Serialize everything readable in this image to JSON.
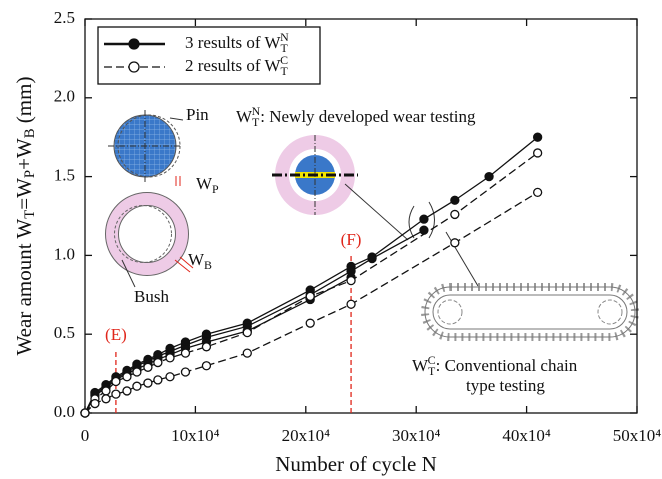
{
  "chart_data": {
    "type": "line",
    "x_label": "Number of cycle N",
    "y_label": [
      {
        "t": "Wear amount W"
      },
      {
        "t": "T",
        "sub": true
      },
      {
        "t": "=W"
      },
      {
        "t": "P",
        "sub": true
      },
      {
        "t": "+W"
      },
      {
        "t": "B",
        "sub": true
      },
      {
        "t": " (mm)"
      }
    ],
    "xlim": [
      0,
      500000
    ],
    "xticks": [
      0,
      {
        "value": 100000,
        "label": "10x10⁴"
      },
      {
        "value": 200000,
        "label": "20x10⁴"
      },
      {
        "value": 300000,
        "label": "30x10⁴"
      },
      {
        "value": 400000,
        "label": "40x10⁴"
      },
      {
        "value": 500000,
        "label": "50x10⁴"
      }
    ],
    "ylim": [
      0,
      2.5
    ],
    "yticks": [
      {
        "value": 0,
        "label": "0.0"
      },
      0.5,
      {
        "value": 1,
        "label": "1.0"
      },
      1.5,
      {
        "value": 2,
        "label": "2.0"
      },
      2.5
    ],
    "groups": [
      {
        "legend": [
          {
            "t": "3 results of  W"
          },
          {
            "t": "T",
            "sub": true
          },
          {
            "t": "N",
            "sup": true
          }
        ],
        "color": "#111",
        "marker": "filled",
        "dashed": false,
        "x": [
          0,
          9000,
          19000,
          28000,
          38000,
          47000,
          57000,
          66000,
          77000,
          91000,
          110000,
          147000,
          204000,
          241000,
          260000,
          307000,
          335000,
          366000,
          410000
        ],
        "runs": [
          [
            0,
            0.13,
            0.18,
            0.23,
            0.27,
            0.31,
            0.34,
            0.37,
            0.41,
            0.45,
            0.5,
            0.57,
            0.78,
            0.93,
            0.99,
            1.23,
            1.35,
            1.5,
            1.75
          ],
          [
            0,
            0.12,
            0.17,
            0.22,
            0.26,
            0.3,
            0.33,
            0.36,
            0.39,
            0.43,
            0.48,
            0.55,
            0.75,
            0.9,
            0.98,
            1.16,
            null,
            null,
            null
          ],
          [
            0,
            0.11,
            0.16,
            0.21,
            0.25,
            0.28,
            0.31,
            0.34,
            0.37,
            0.41,
            0.45,
            0.52,
            0.72,
            0.86,
            null,
            null,
            null,
            null,
            null
          ]
        ]
      },
      {
        "legend": [
          {
            "t": "2 results of  W"
          },
          {
            "t": "T",
            "sub": true
          },
          {
            "t": "C",
            "sup": true
          }
        ],
        "color": "#111",
        "marker": "open",
        "dashed": true,
        "x": [
          0,
          9000,
          19000,
          28000,
          38000,
          47000,
          57000,
          66000,
          77000,
          91000,
          110000,
          147000,
          204000,
          241000,
          335000,
          410000
        ],
        "runs": [
          [
            0,
            0.09,
            0.14,
            0.2,
            0.23,
            0.26,
            0.29,
            0.32,
            0.35,
            0.38,
            0.42,
            0.51,
            0.74,
            0.84,
            1.26,
            1.65
          ],
          [
            0,
            0.06,
            0.09,
            0.12,
            0.14,
            0.17,
            0.19,
            0.21,
            0.23,
            0.26,
            0.3,
            0.38,
            0.57,
            0.69,
            1.08,
            1.4
          ]
        ]
      }
    ],
    "vlines": [
      {
        "label": "(E)",
        "x": 28000,
        "color": "#e0261b"
      },
      {
        "label": "(F)",
        "x": 241000,
        "color": "#e0261b"
      }
    ],
    "annotations": {
      "pin": "Pin",
      "wp": [
        {
          "t": "W"
        },
        {
          "t": "P",
          "sub": true
        }
      ],
      "bush": "Bush",
      "wb": [
        {
          "t": "W"
        },
        {
          "t": "B",
          "sub": true
        }
      ],
      "new_test": [
        {
          "t": "W"
        },
        {
          "t": "T",
          "sub": true
        },
        {
          "t": "N",
          "sup": true
        },
        {
          "t": ": Newly developed wear testing"
        }
      ],
      "conv_test": [
        {
          "t": "W"
        },
        {
          "t": "T",
          "sub": true
        },
        {
          "t": "C",
          "sup": true
        },
        {
          "t": ": Conventional chain"
        }
      ],
      "conv_test_2": "type testing"
    }
  }
}
